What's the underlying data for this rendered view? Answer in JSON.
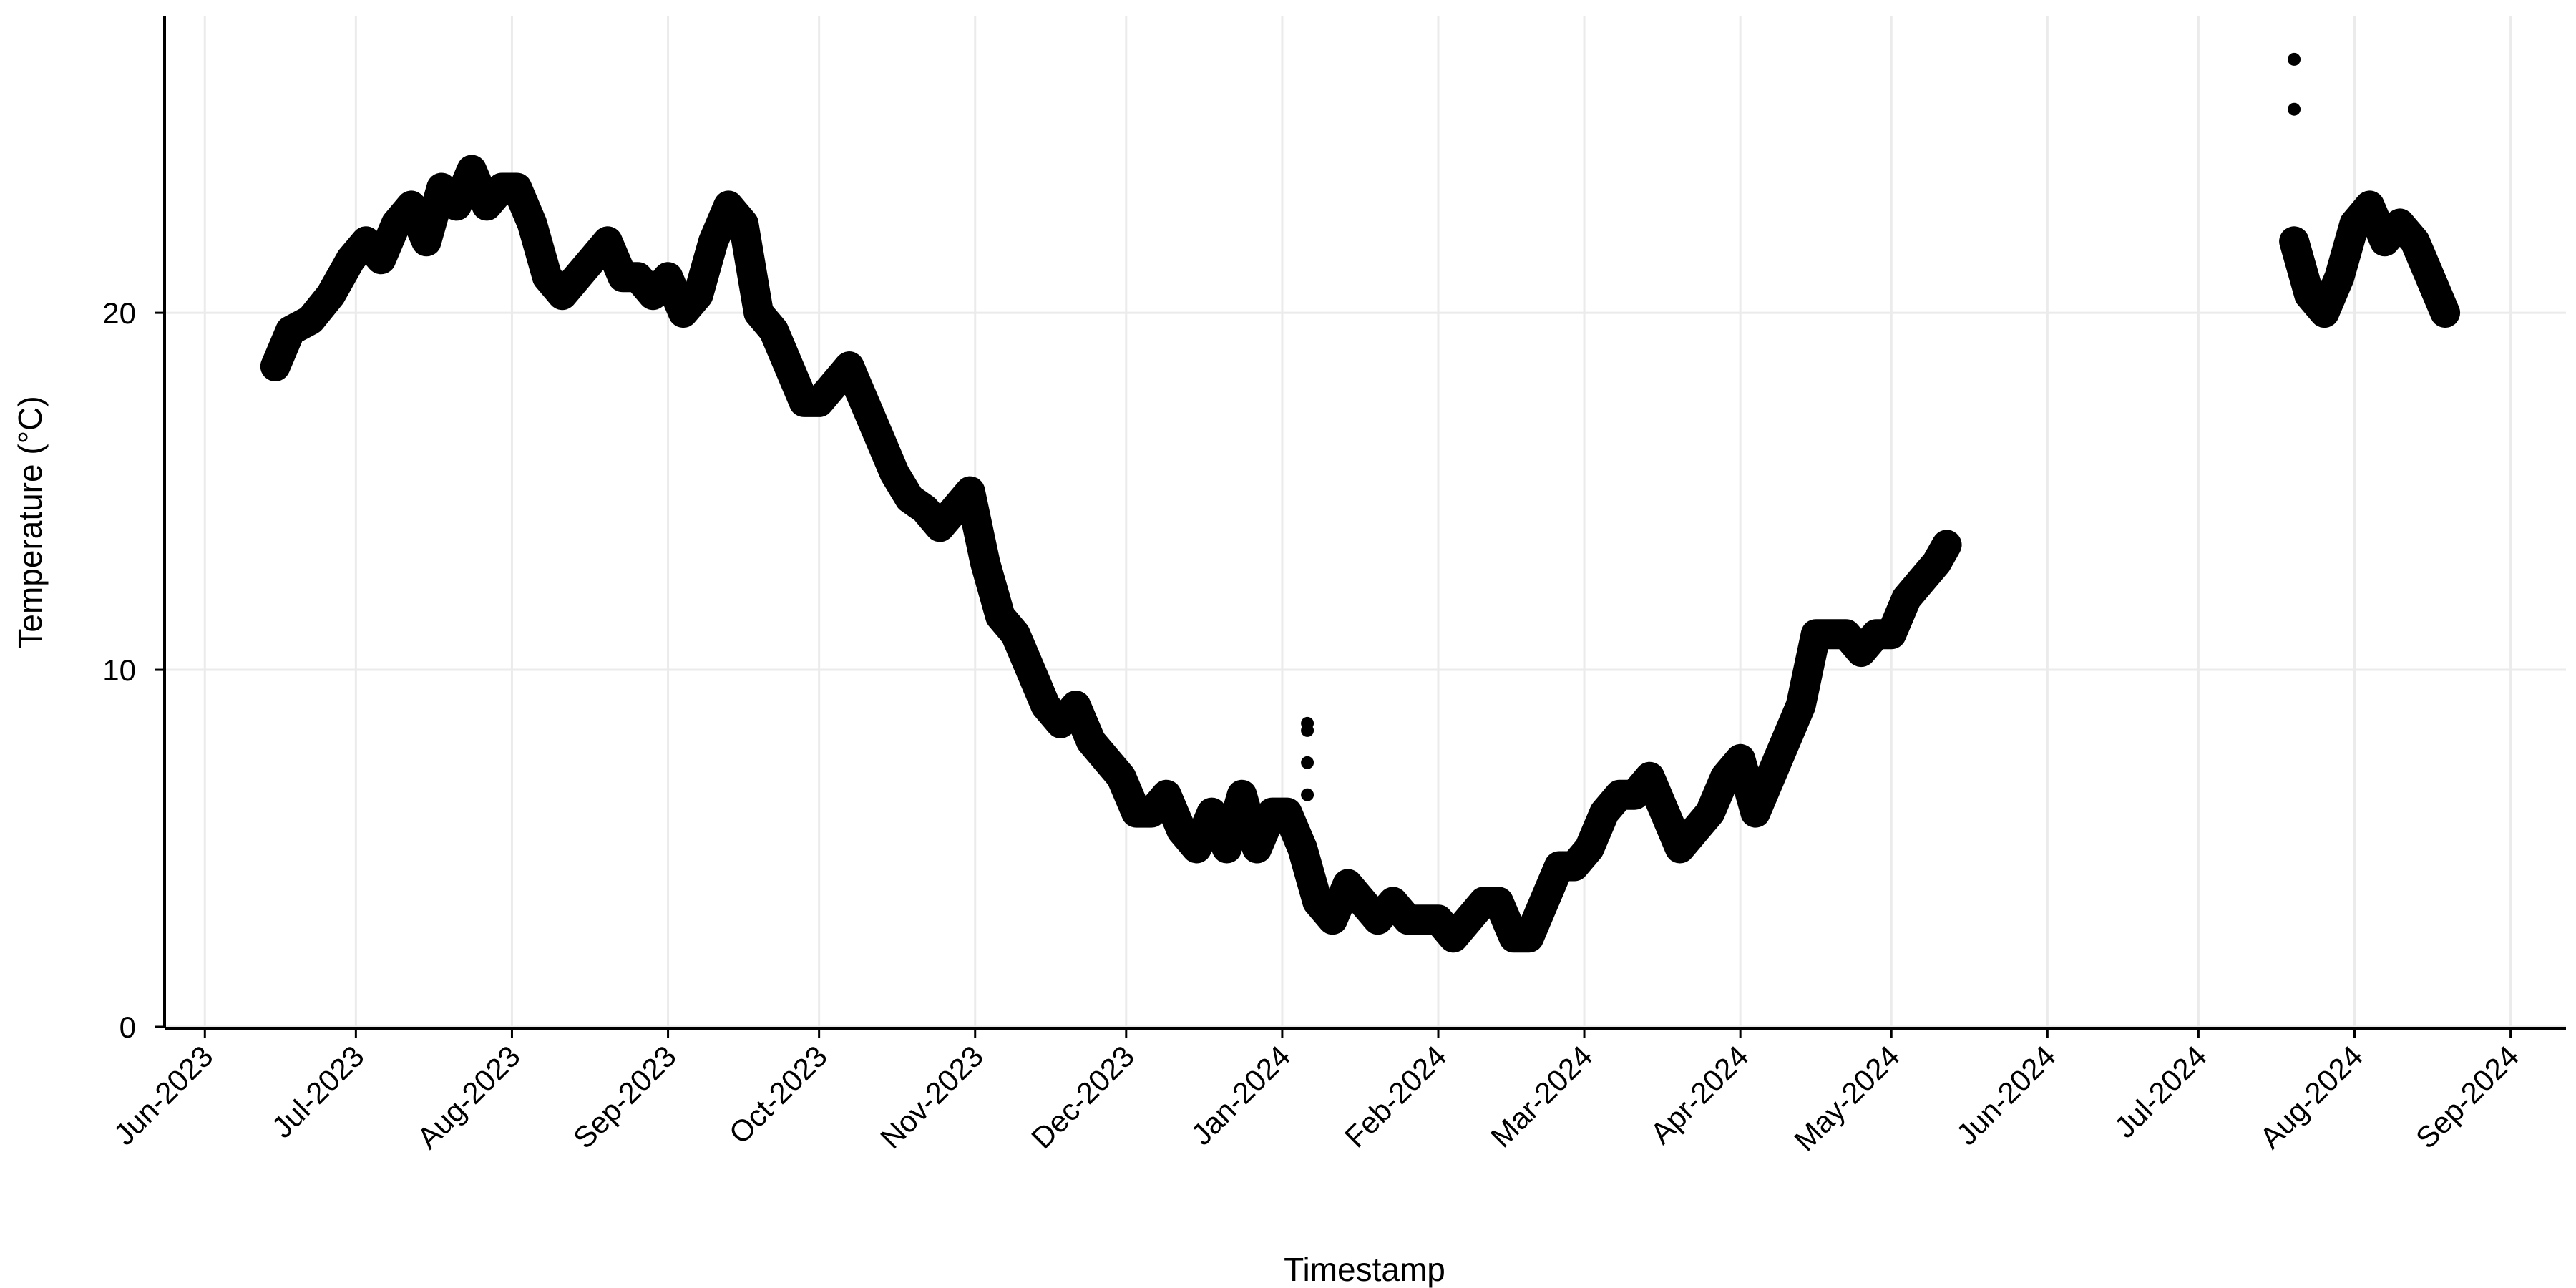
{
  "chart_data": {
    "type": "line",
    "x_label": "Timestamp",
    "y_label": "Temperature (°C)",
    "xlim": [
      "2023-05-24",
      "2024-09-12"
    ],
    "xticks": [
      {
        "value": "2023-06-01",
        "label": "Jun-2023"
      },
      {
        "value": "2023-07-01",
        "label": "Jul-2023"
      },
      {
        "value": "2023-08-01",
        "label": "Aug-2023"
      },
      {
        "value": "2023-09-01",
        "label": "Sep-2023"
      },
      {
        "value": "2023-10-01",
        "label": "Oct-2023"
      },
      {
        "value": "2023-11-01",
        "label": "Nov-2023"
      },
      {
        "value": "2023-12-01",
        "label": "Dec-2023"
      },
      {
        "value": "2024-01-01",
        "label": "Jan-2024"
      },
      {
        "value": "2024-02-01",
        "label": "Feb-2024"
      },
      {
        "value": "2024-03-01",
        "label": "Mar-2024"
      },
      {
        "value": "2024-04-01",
        "label": "Apr-2024"
      },
      {
        "value": "2024-05-01",
        "label": "May-2024"
      },
      {
        "value": "2024-06-01",
        "label": "Jun-2024"
      },
      {
        "value": "2024-07-01",
        "label": "Jul-2024"
      },
      {
        "value": "2024-08-01",
        "label": "Aug-2024"
      },
      {
        "value": "2024-09-01",
        "label": "Sep-2024"
      }
    ],
    "ylim": [
      0,
      28.3
    ],
    "yticks": [
      0,
      10,
      20
    ],
    "grid": true,
    "series": [
      {
        "color": "#000000",
        "mode": "line",
        "x": [
          "2023-06-15",
          "2023-06-18",
          "2023-06-22",
          "2023-06-26",
          "2023-06-30",
          "2023-07-03",
          "2023-07-06",
          "2023-07-09",
          "2023-07-12",
          "2023-07-15",
          "2023-07-18",
          "2023-07-21",
          "2023-07-24",
          "2023-07-27",
          "2023-07-30",
          "2023-08-02",
          "2023-08-05",
          "2023-08-08",
          "2023-08-11",
          "2023-08-14",
          "2023-08-17",
          "2023-08-20",
          "2023-08-23",
          "2023-08-26",
          "2023-08-29",
          "2023-09-01",
          "2023-09-04",
          "2023-09-07",
          "2023-09-10",
          "2023-09-13",
          "2023-09-16",
          "2023-09-19",
          "2023-09-22",
          "2023-09-25",
          "2023-09-28",
          "2023-10-01",
          "2023-10-04",
          "2023-10-07",
          "2023-10-10",
          "2023-10-13",
          "2023-10-16",
          "2023-10-19",
          "2023-10-22",
          "2023-10-25",
          "2023-10-28",
          "2023-10-31",
          "2023-11-03",
          "2023-11-06",
          "2023-11-09",
          "2023-11-12",
          "2023-11-15",
          "2023-11-18",
          "2023-11-21",
          "2023-11-24",
          "2023-11-27",
          "2023-11-30",
          "2023-12-03",
          "2023-12-06",
          "2023-12-09",
          "2023-12-12",
          "2023-12-15",
          "2023-12-18",
          "2023-12-21",
          "2023-12-24",
          "2023-12-27",
          "2023-12-30",
          "2024-01-02",
          "2024-01-05",
          "2024-01-08",
          "2024-01-11",
          "2024-01-14",
          "2024-01-17",
          "2024-01-20",
          "2024-01-23",
          "2024-01-26",
          "2024-01-29",
          "2024-02-01",
          "2024-02-04",
          "2024-02-07",
          "2024-02-10",
          "2024-02-13",
          "2024-02-16",
          "2024-02-19",
          "2024-02-22",
          "2024-02-25",
          "2024-02-28",
          "2024-03-02",
          "2024-03-05",
          "2024-03-08",
          "2024-03-11",
          "2024-03-14",
          "2024-03-17",
          "2024-03-20",
          "2024-03-23",
          "2024-03-26",
          "2024-03-29",
          "2024-04-01",
          "2024-04-04",
          "2024-04-07",
          "2024-04-10",
          "2024-04-13",
          "2024-04-16",
          "2024-04-19",
          "2024-04-22",
          "2024-04-25",
          "2024-04-28",
          "2024-05-01",
          "2024-05-04",
          "2024-05-07",
          "2024-05-10",
          "2024-05-12"
        ],
        "values": [
          18.5,
          19.5,
          19.8,
          20.5,
          21.5,
          22,
          21.5,
          22.5,
          23,
          22,
          23.5,
          23,
          24,
          23,
          23.5,
          23.5,
          22.5,
          21,
          20.5,
          21,
          21.5,
          22,
          21,
          21,
          20.5,
          21,
          20,
          20.5,
          22,
          23,
          22.5,
          20,
          19.5,
          18.5,
          17.5,
          17.5,
          18,
          18.5,
          17.5,
          16.5,
          15.5,
          14.8,
          14.5,
          14,
          14.5,
          15,
          13,
          11.5,
          11,
          10,
          9,
          8.5,
          9,
          8,
          7.5,
          7,
          6,
          6,
          6.5,
          5.5,
          5,
          6,
          5,
          6.5,
          5,
          6,
          6,
          5,
          3.5,
          3,
          4,
          3.5,
          3,
          3.5,
          3,
          3,
          3,
          2.5,
          3,
          3.5,
          3.5,
          2.5,
          2.5,
          3.5,
          4.5,
          4.5,
          5,
          6,
          6.5,
          6.5,
          7,
          6,
          5,
          5.5,
          6,
          7,
          7.5,
          6,
          7,
          8,
          9,
          11,
          11,
          11,
          10.5,
          11,
          11,
          12,
          12.5,
          13,
          13.5
        ]
      },
      {
        "color": "#000000",
        "mode": "line",
        "x": [
          "2024-07-20",
          "2024-07-23",
          "2024-07-26",
          "2024-07-29",
          "2024-08-01",
          "2024-08-04",
          "2024-08-07",
          "2024-08-10",
          "2024-08-13",
          "2024-08-16",
          "2024-08-19"
        ],
        "values": [
          22,
          20.5,
          20,
          21,
          22.5,
          23,
          22,
          22.5,
          22,
          21,
          20
        ]
      },
      {
        "color": "#000000",
        "mode": "points",
        "x": [
          "2024-01-06",
          "2024-01-06",
          "2024-01-06",
          "2024-01-06",
          "2024-07-20",
          "2024-07-20"
        ],
        "values": [
          8.5,
          8.3,
          7.4,
          6.5,
          27.1,
          25.7
        ]
      }
    ]
  }
}
